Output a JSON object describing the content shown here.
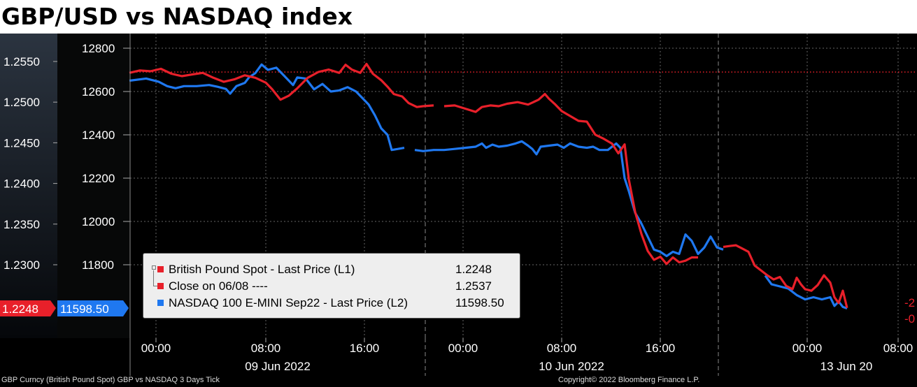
{
  "title": "GBP/USD vs NASDAQ index",
  "footer_left": "GBP Curncy (British Pound Spot) GBP vs NASDAQ 3 Days  Tick",
  "footer_right": "Copyright© 2022 Bloomberg Finance L.P.",
  "legend": [
    {
      "name": "British Pound Spot - Last Price (L1)",
      "value": "1.2248",
      "color": "#e8202a"
    },
    {
      "name": "Close on 06/08 ----",
      "value": "1.2537",
      "color": "#e8202a"
    },
    {
      "name": "NASDAQ 100 E-MINI Sep22 - Last Price (L2)",
      "value": "11598.50",
      "color": "#1f78f0"
    }
  ],
  "chart_data": {
    "type": "line",
    "left_axis_ticks": [
      "1.2550",
      "1.2500",
      "1.2450",
      "1.2400",
      "1.2350",
      "1.2300"
    ],
    "left_axis_range": [
      1.2237,
      1.2592
    ],
    "right_axis_ticks": [
      "12800",
      "12600",
      "12400",
      "12200",
      "12000",
      "11800"
    ],
    "right_axis_range": [
      11575,
      12815
    ],
    "gbp_last_label": "1.2248",
    "nasdaq_last_label": "11598.50",
    "right_edge_labels": [
      "-2",
      "-0"
    ],
    "x_ticks": [
      "00:00",
      "08:00",
      "16:00",
      "00:00",
      "08:00",
      "16:00",
      "00:00",
      "08:00"
    ],
    "date_labels": [
      "09 Jun 2022",
      "10 Jun 2022",
      "13 Jun 20"
    ],
    "reference_line": {
      "label": "Close on 06/08",
      "value": 1.2537
    },
    "series": [
      {
        "name": "British Pound Spot - Last Price (L1)",
        "axis": "left",
        "color": "#e8202a",
        "segments": [
          [
            [
              0,
              1.2536
            ],
            [
              5,
              1.2539
            ],
            [
              10,
              1.2538
            ],
            [
              15,
              1.2541
            ],
            [
              20,
              1.2535
            ],
            [
              25,
              1.2532
            ],
            [
              30,
              1.2534
            ],
            [
              35,
              1.2536
            ],
            [
              40,
              1.253
            ],
            [
              45,
              1.2525
            ],
            [
              50,
              1.2528
            ],
            [
              55,
              1.2533
            ],
            [
              60,
              1.253
            ],
            [
              65,
              1.2524
            ],
            [
              68,
              1.2516
            ],
            [
              72,
              1.2503
            ],
            [
              76,
              1.2508
            ],
            [
              80,
              1.2517
            ],
            [
              85,
              1.253
            ],
            [
              90,
              1.2537
            ],
            [
              95,
              1.254
            ],
            [
              100,
              1.2536
            ],
            [
              103,
              1.2546
            ],
            [
              106,
              1.254
            ],
            [
              110,
              1.2536
            ],
            [
              113,
              1.2547
            ],
            [
              116,
              1.2535
            ],
            [
              120,
              1.2527
            ],
            [
              123,
              1.2519
            ],
            [
              126,
              1.251
            ],
            [
              130,
              1.2507
            ],
            [
              133,
              1.2499
            ],
            [
              137,
              1.2494
            ],
            [
              140,
              1.2495
            ],
            [
              145,
              1.2496
            ]
          ],
          [
            [
              150,
              1.2495
            ],
            [
              155,
              1.2496
            ],
            [
              160,
              1.2492
            ],
            [
              165,
              1.2488
            ],
            [
              168,
              1.2494
            ],
            [
              172,
              1.2496
            ],
            [
              176,
              1.2495
            ],
            [
              180,
              1.2498
            ],
            [
              185,
              1.25
            ],
            [
              190,
              1.2497
            ],
            [
              195,
              1.2503
            ],
            [
              198,
              1.251
            ],
            [
              200,
              1.2504
            ],
            [
              203,
              1.2497
            ],
            [
              206,
              1.2489
            ],
            [
              210,
              1.2483
            ],
            [
              214,
              1.2477
            ],
            [
              218,
              1.2476
            ],
            [
              222,
              1.246
            ],
            [
              226,
              1.2455
            ],
            [
              230,
              1.2449
            ],
            [
              233,
              1.2437
            ],
            [
              236,
              1.2448
            ],
            [
              238,
              1.2405
            ],
            [
              241,
              1.2365
            ],
            [
              244,
              1.2338
            ],
            [
              247,
              1.2317
            ],
            [
              250,
              1.2306
            ],
            [
              253,
              1.231
            ],
            [
              256,
              1.2301
            ],
            [
              259,
              1.2309
            ],
            [
              262,
              1.2303
            ],
            [
              265,
              1.2305
            ],
            [
              268,
              1.2309
            ],
            [
              271,
              1.2309
            ]
          ],
          [
            [
              283,
              1.2322
            ],
            [
              286,
              1.2323
            ],
            [
              289,
              1.2324
            ],
            [
              292,
              1.232
            ],
            [
              295,
              1.2316
            ],
            [
              298,
              1.2299
            ],
            [
              301,
              1.2293
            ],
            [
              304,
              1.2287
            ],
            [
              307,
              1.2282
            ],
            [
              310,
              1.2285
            ],
            [
              313,
              1.2274
            ],
            [
              316,
              1.227
            ],
            [
              318,
              1.2284
            ],
            [
              320,
              1.2276
            ],
            [
              322,
              1.227
            ],
            [
              325,
              1.2268
            ],
            [
              328,
              1.2275
            ],
            [
              331,
              1.2287
            ],
            [
              334,
              1.2278
            ],
            [
              336,
              1.226
            ],
            [
              338,
              1.2253
            ],
            [
              340,
              1.2268
            ],
            [
              342,
              1.2247
            ]
          ]
        ]
      },
      {
        "name": "NASDAQ 100 E-MINI Sep22 - Last Price (L2)",
        "axis": "right",
        "color": "#1f78f0",
        "segments": [
          [
            [
              0,
              12650
            ],
            [
              8,
              12660
            ],
            [
              14,
              12645
            ],
            [
              18,
              12625
            ],
            [
              22,
              12615
            ],
            [
              26,
              12625
            ],
            [
              32,
              12625
            ],
            [
              38,
              12630
            ],
            [
              42,
              12622
            ],
            [
              46,
              12612
            ],
            [
              48,
              12590
            ],
            [
              51,
              12625
            ],
            [
              55,
              12640
            ],
            [
              57,
              12665
            ],
            [
              60,
              12685
            ],
            [
              63,
              12725
            ],
            [
              66,
              12700
            ],
            [
              70,
              12710
            ],
            [
              74,
              12670
            ],
            [
              78,
              12630
            ],
            [
              80,
              12665
            ],
            [
              84,
              12660
            ],
            [
              88,
              12610
            ],
            [
              92,
              12635
            ],
            [
              96,
              12600
            ],
            [
              100,
              12605
            ],
            [
              104,
              12620
            ],
            [
              108,
              12600
            ],
            [
              111,
              12570
            ],
            [
              114,
              12540
            ],
            [
              117,
              12490
            ],
            [
              120,
              12430
            ],
            [
              123,
              12400
            ],
            [
              125,
              12330
            ],
            [
              128,
              12335
            ],
            [
              131,
              12340
            ]
          ],
          [
            [
              136,
              12330
            ],
            [
              140,
              12325
            ],
            [
              145,
              12330
            ],
            [
              150,
              12330
            ],
            [
              155,
              12335
            ],
            [
              160,
              12340
            ],
            [
              165,
              12345
            ],
            [
              168,
              12360
            ],
            [
              170,
              12340
            ],
            [
              173,
              12355
            ],
            [
              176,
              12345
            ],
            [
              180,
              12350
            ],
            [
              184,
              12360
            ],
            [
              187,
              12370
            ],
            [
              190,
              12350
            ],
            [
              192,
              12335
            ],
            [
              194,
              12310
            ],
            [
              196,
              12345
            ],
            [
              200,
              12350
            ],
            [
              204,
              12355
            ],
            [
              207,
              12340
            ],
            [
              210,
              12360
            ],
            [
              214,
              12345
            ],
            [
              218,
              12340
            ],
            [
              221,
              12345
            ],
            [
              224,
              12330
            ],
            [
              228,
              12330
            ],
            [
              232,
              12360
            ],
            [
              234,
              12340
            ],
            [
              236,
              12200
            ],
            [
              238,
              12140
            ],
            [
              241,
              12040
            ],
            [
              244,
              11990
            ],
            [
              247,
              11930
            ],
            [
              250,
              11870
            ],
            [
              253,
              11860
            ],
            [
              256,
              11840
            ],
            [
              259,
              11860
            ],
            [
              262,
              11850
            ],
            [
              265,
              11940
            ],
            [
              268,
              11910
            ],
            [
              271,
              11850
            ],
            [
              274,
              11880
            ],
            [
              277,
              11930
            ],
            [
              280,
              11880
            ],
            [
              283,
              11870
            ]
          ],
          [
            [
              303,
              11750
            ],
            [
              306,
              11710
            ],
            [
              310,
              11700
            ],
            [
              314,
              11690
            ],
            [
              318,
              11660
            ],
            [
              322,
              11640
            ],
            [
              326,
              11650
            ],
            [
              330,
              11640
            ],
            [
              334,
              11650
            ],
            [
              336,
              11610
            ],
            [
              338,
              11630
            ],
            [
              340,
              11605
            ],
            [
              342,
              11598.5
            ]
          ]
        ]
      }
    ]
  }
}
